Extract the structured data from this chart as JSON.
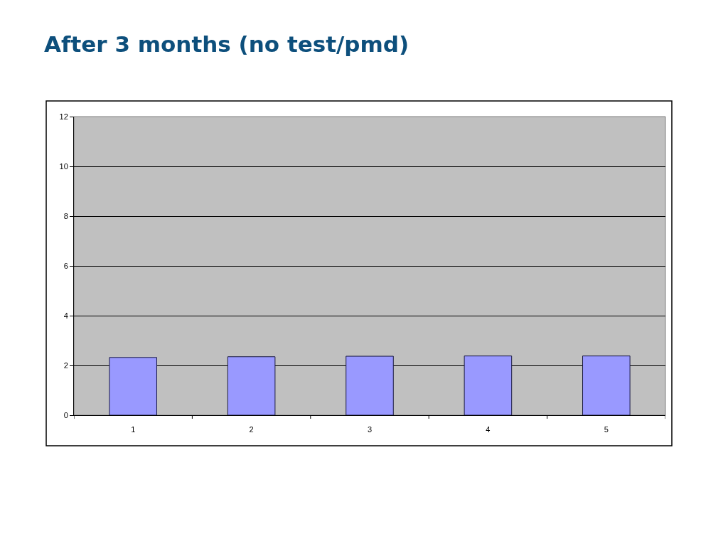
{
  "chart_data": {
    "type": "bar",
    "title": "After 3 months (no test/pmd)",
    "categories": [
      "1",
      "2",
      "3",
      "4",
      "5"
    ],
    "values": [
      2.32,
      2.35,
      2.37,
      2.38,
      2.38
    ],
    "color": "#9999ff",
    "ylim": [
      0,
      12
    ],
    "yticks": [
      0,
      2,
      4,
      6,
      8,
      10,
      12
    ],
    "grid": "y"
  }
}
